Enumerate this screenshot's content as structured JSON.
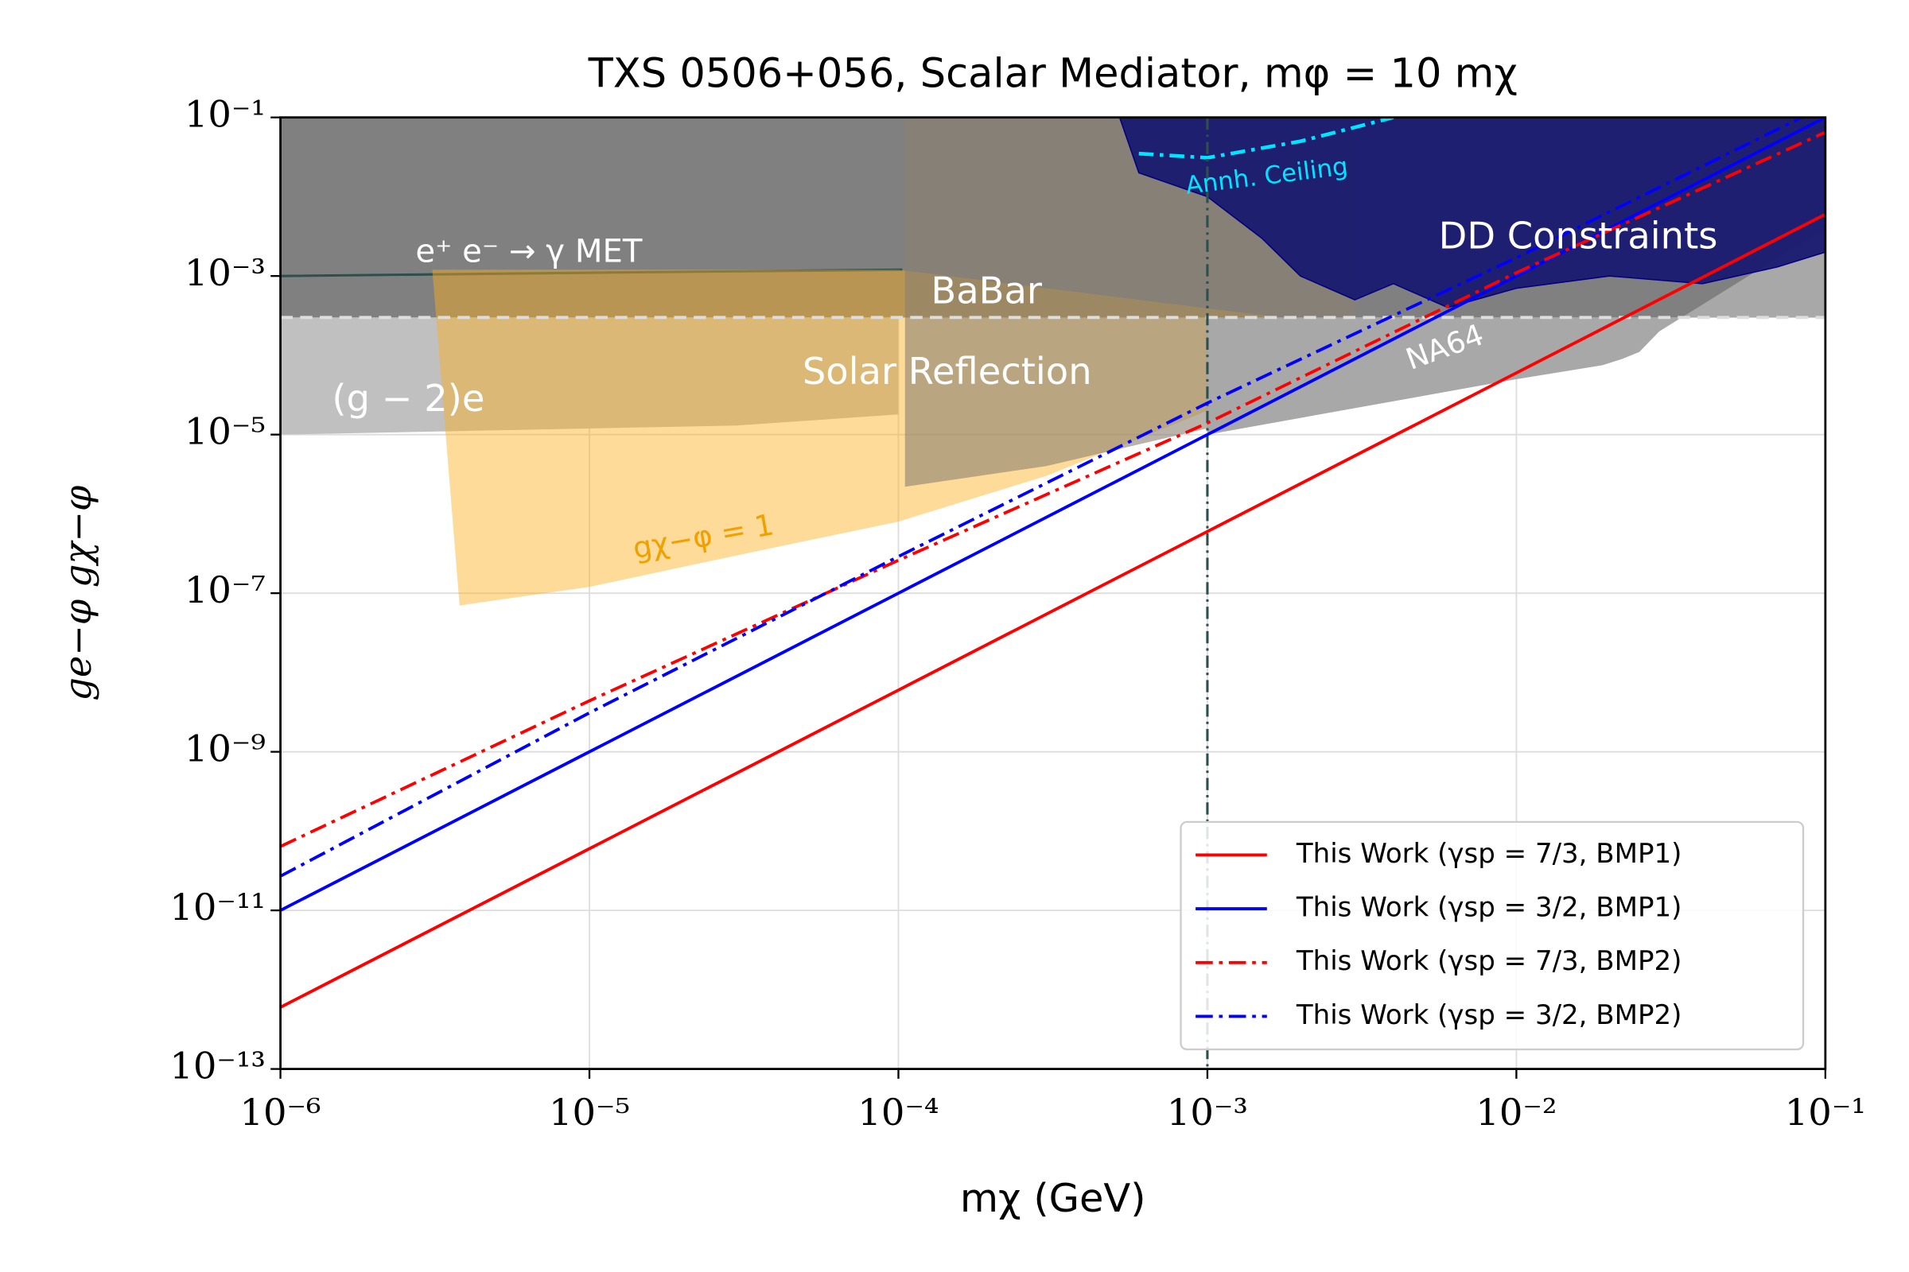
{
  "chart_data": {
    "type": "line",
    "title": "TXS 0506+056, Scalar Mediator, mφ = 10 mχ",
    "x_label": "mχ (GeV)",
    "y_label": "ge−φ gχ−φ",
    "log_x": true,
    "log_y": true,
    "grid": true,
    "legend_position": "lower right",
    "xlim": [
      1e-06,
      0.1
    ],
    "ylim": [
      1e-13,
      0.1
    ],
    "xticks": [
      {
        "value": 1e-06,
        "label": "10⁻⁶"
      },
      {
        "value": 1e-05,
        "label": "10⁻⁵"
      },
      {
        "value": 0.0001,
        "label": "10⁻⁴"
      },
      {
        "value": 0.001,
        "label": "10⁻³"
      },
      {
        "value": 0.01,
        "label": "10⁻²"
      },
      {
        "value": 0.1,
        "label": "10⁻¹"
      }
    ],
    "yticks": [
      {
        "value": 1e-13,
        "label": "10⁻¹³"
      },
      {
        "value": 1e-11,
        "label": "10⁻¹¹"
      },
      {
        "value": 1e-09,
        "label": "10⁻⁹"
      },
      {
        "value": 1e-07,
        "label": "10⁻⁷"
      },
      {
        "value": 1e-05,
        "label": "10⁻⁵"
      },
      {
        "value": 0.001,
        "label": "10⁻³"
      },
      {
        "value": 0.1,
        "label": "10⁻¹"
      }
    ],
    "x": [
      1e-06,
      1e-05,
      0.0001,
      0.001,
      0.01,
      0.1
    ],
    "series": [
      {
        "name": "This Work (γsp = 7/3, BMP1)",
        "color": "#ff0000",
        "linestyle": "solid",
        "values": [
          6e-13,
          6e-11,
          6e-09,
          6e-07,
          6e-05,
          0.006
        ]
      },
      {
        "name": "This Work (γsp = 3/2, BMP1)",
        "color": "#0000ff",
        "linestyle": "solid",
        "values": [
          1e-11,
          1e-09,
          1e-07,
          1e-05,
          0.001,
          0.1
        ]
      },
      {
        "name": "This Work (γsp = 7/3, BMP2)",
        "color": "#ff0000",
        "linestyle": "dashdot",
        "values": [
          6.4e-11,
          4.4e-09,
          2.6e-07,
          1.4e-05,
          0.0011,
          0.065
        ]
      },
      {
        "name": "This Work (γsp = 3/2, BMP2)",
        "color": "#0000ff",
        "linestyle": "dashdot",
        "values": [
          2.7e-11,
          3.1e-09,
          2.9e-07,
          2.5e-05,
          0.0017,
          0.14
        ]
      }
    ],
    "vline": 0.001,
    "regions": [
      {
        "name": "BaBar",
        "color": "#808080",
        "fill": true,
        "x": [
          1e-06,
          0.1,
          0.1,
          1e-06
        ],
        "y": [
          0.1,
          0.1,
          0.0003,
          0.0003
        ]
      },
      {
        "name": "e⁺ e⁻ → γ MET",
        "color": "#2f4f4f",
        "fill": false,
        "x": [
          1e-06,
          1e-05,
          0.000103
        ],
        "y": [
          0.001,
          0.0011,
          0.0012
        ]
      },
      {
        "name": "(g − 2)e",
        "color": "#c0c0c0",
        "fill": true,
        "x": [
          1e-06,
          3e-05,
          0.0001,
          0.0001,
          1e-06
        ],
        "y": [
          1e-05,
          1.3e-05,
          1.8e-05,
          0.0003,
          0.0003
        ]
      },
      {
        "name": "Solar Reflection",
        "color": "#ffb020",
        "fill": true,
        "x": [
          3.1e-06,
          3.8e-06,
          1e-05,
          3e-05,
          0.0001,
          0.0003,
          0.001,
          0.0025,
          0.0001
        ],
        "y": [
          0.0012,
          7e-08,
          1.2e-07,
          3e-07,
          8e-07,
          3e-06,
          2e-05,
          0.00025,
          0.0012
        ]
      },
      {
        "name": "gχ−φ = 1",
        "color": "#8a8070",
        "fill": true,
        "x": [
          0.000105,
          0.000105,
          0.0003,
          0.001,
          0.003,
          0.003
        ],
        "y": [
          0.1,
          2.2e-06,
          4e-06,
          1.2e-05,
          0.0001,
          0.1
        ]
      },
      {
        "name": "NA64",
        "color": "#a8a8a8",
        "fill": true,
        "x": [
          0.001,
          0.01,
          0.019,
          0.022,
          0.025,
          0.029,
          0.1,
          0.1,
          0.001
        ],
        "y": [
          1e-05,
          5e-05,
          7.5e-05,
          9e-05,
          0.00011,
          0.0002,
          0.004,
          0.0003,
          0.0003
        ]
      },
      {
        "name": "DD Constraints",
        "color": "#191970",
        "fill": true,
        "x": [
          0.00052,
          0.0006,
          0.001,
          0.0015,
          0.002,
          0.003,
          0.004,
          0.006,
          0.01,
          0.02,
          0.04,
          0.07,
          0.1,
          0.1
        ],
        "y": [
          0.1,
          0.02,
          0.01,
          0.003,
          0.001,
          0.0005,
          0.0008,
          0.0004,
          0.0007,
          0.001,
          0.0008,
          0.0013,
          0.002,
          0.1
        ]
      },
      {
        "name": "Annh. Ceiling",
        "color": "#00e5ff",
        "fill": false,
        "x": [
          0.0006,
          0.001,
          0.002,
          0.004
        ],
        "y": [
          0.035,
          0.031,
          0.05,
          0.1
        ]
      }
    ]
  }
}
